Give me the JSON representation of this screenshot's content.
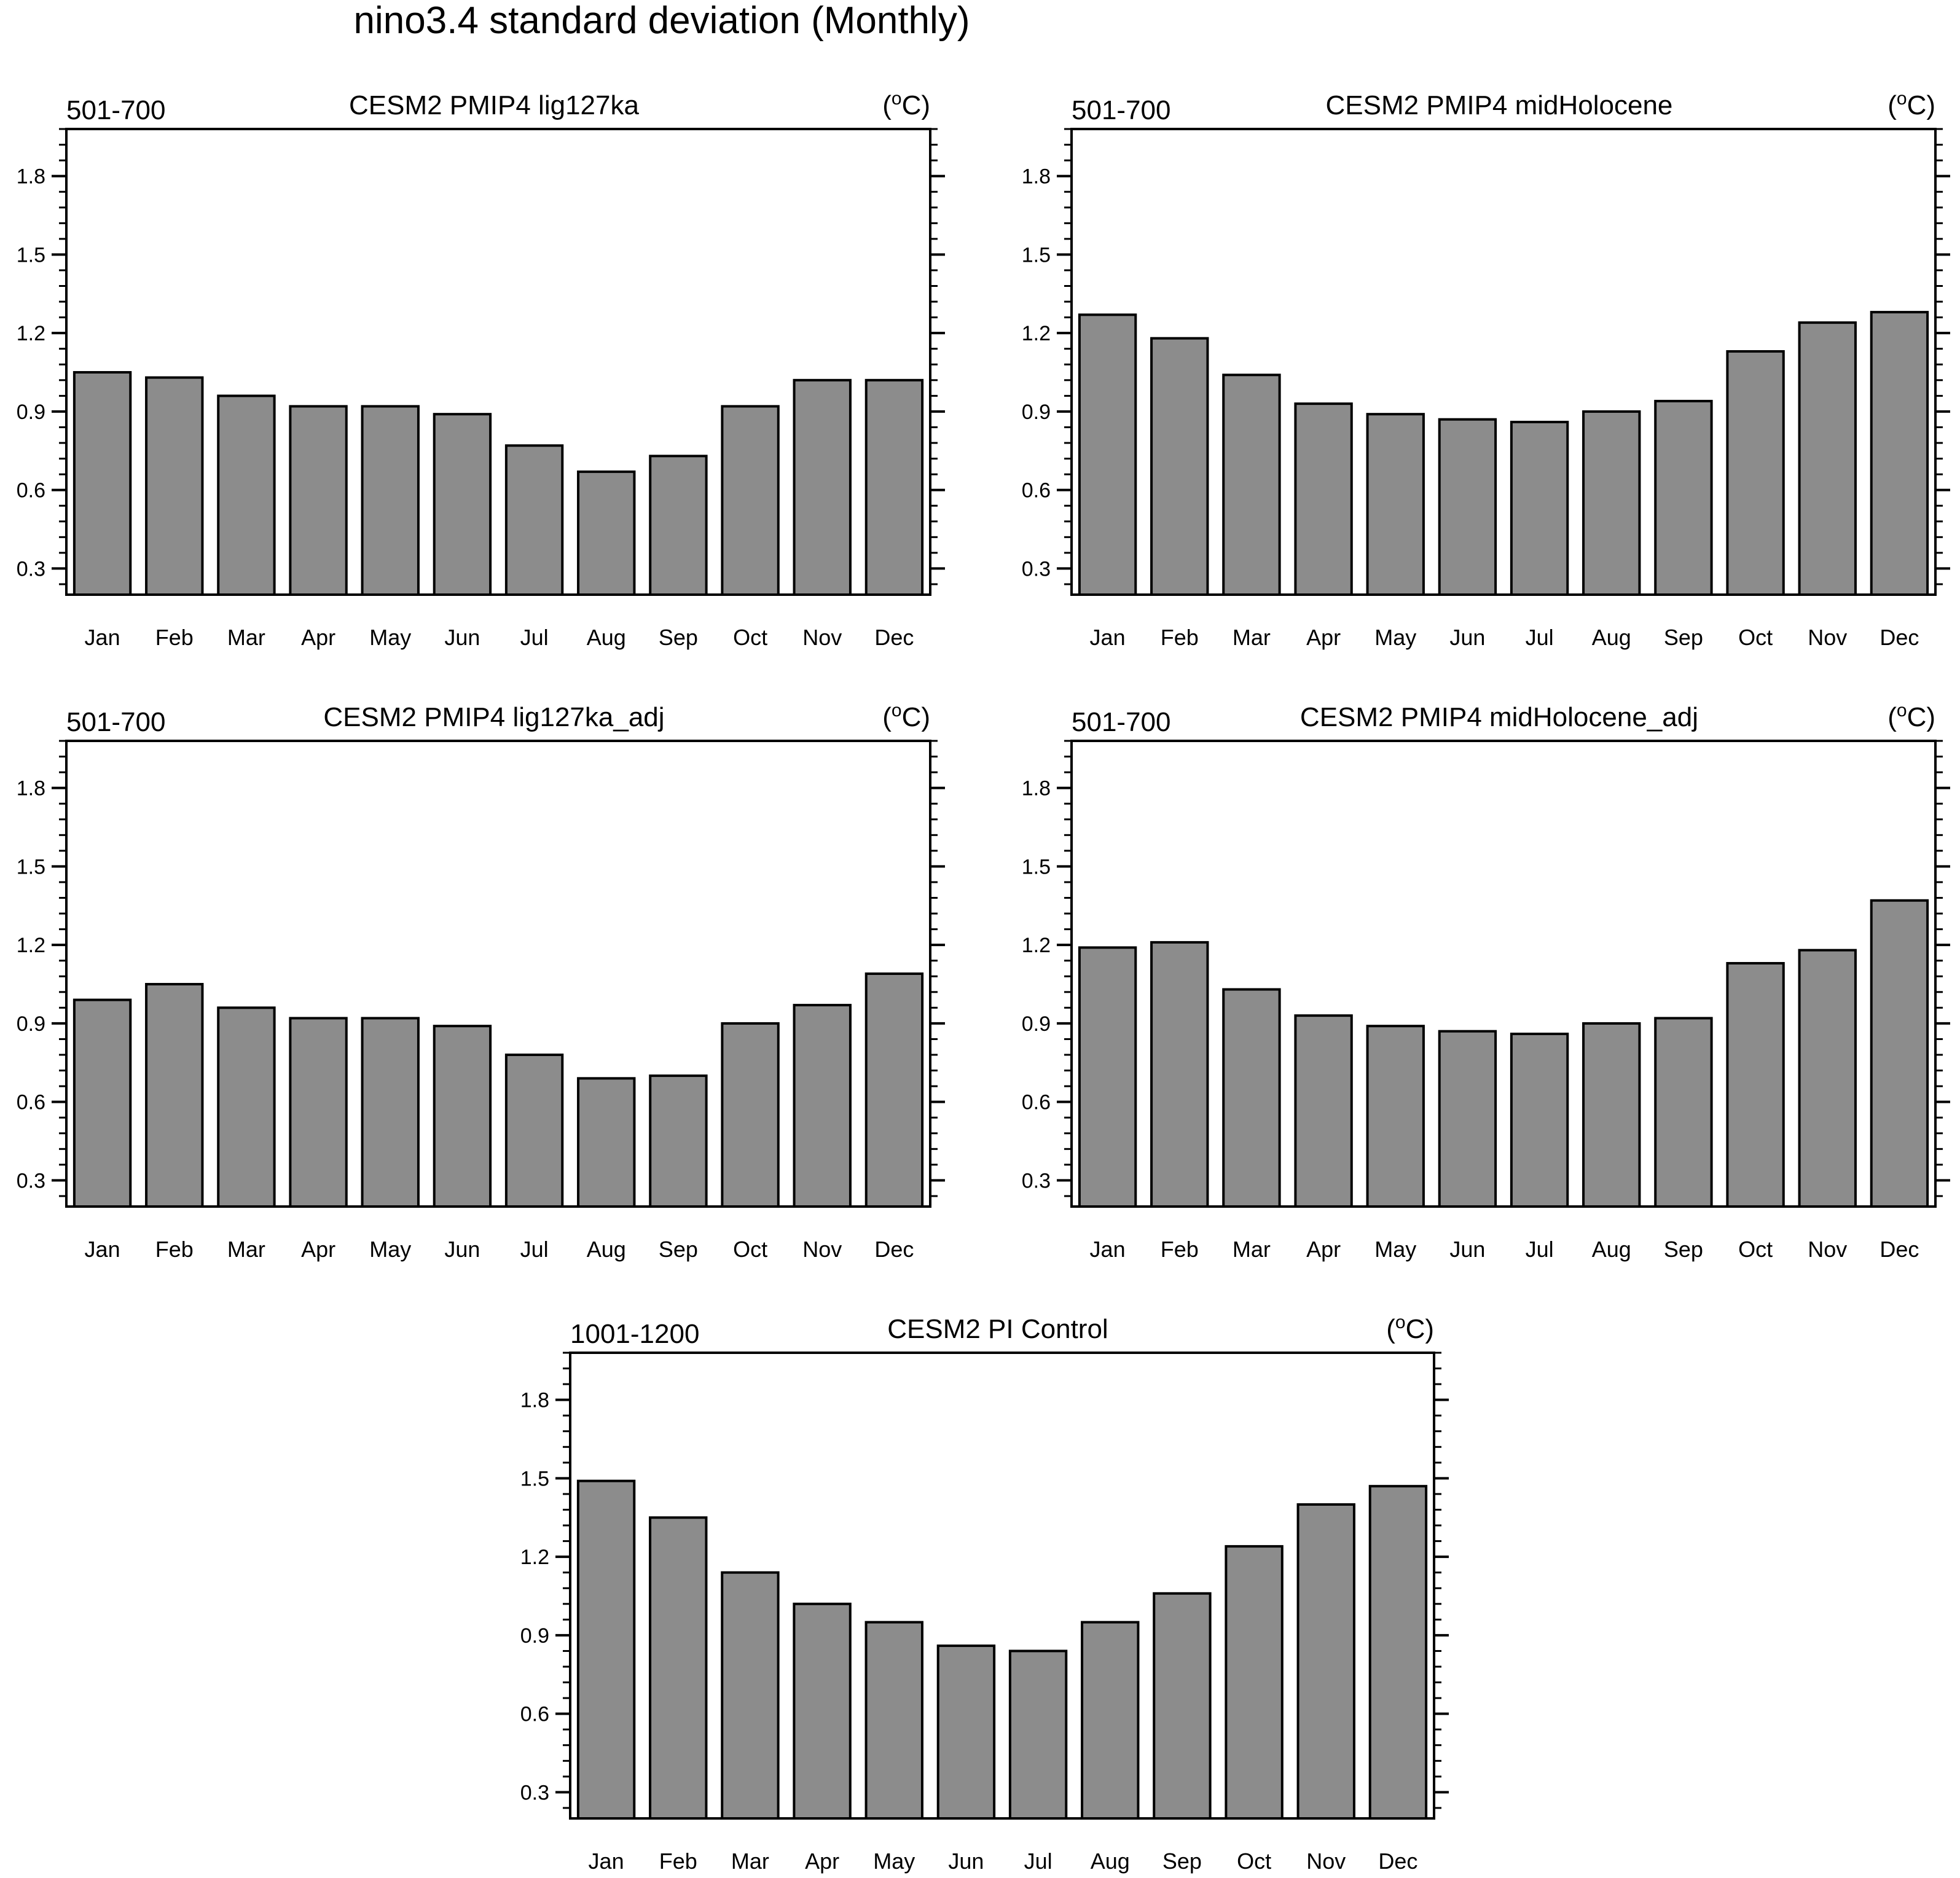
{
  "figure_title": "nino3.4 standard deviation (Monthly)",
  "units_prefix": "(",
  "units_degree": "o",
  "units_suffix": "C)",
  "chart_data": [
    {
      "type": "bar",
      "period": "501-700",
      "title": "CESM2 PMIP4 lig127ka",
      "categories": [
        "Jan",
        "Feb",
        "Mar",
        "Apr",
        "May",
        "Jun",
        "Jul",
        "Aug",
        "Sep",
        "Oct",
        "Nov",
        "Dec"
      ],
      "values": [
        1.05,
        1.03,
        0.96,
        0.92,
        0.92,
        0.89,
        0.77,
        0.67,
        0.73,
        0.92,
        1.02,
        1.02
      ],
      "yticks": [
        "0.3",
        "0.6",
        "0.9",
        "1.2",
        "1.5",
        "1.8"
      ],
      "ylim": [
        0.2,
        1.98
      ]
    },
    {
      "type": "bar",
      "period": "501-700",
      "title": "CESM2 PMIP4 midHolocene",
      "categories": [
        "Jan",
        "Feb",
        "Mar",
        "Apr",
        "May",
        "Jun",
        "Jul",
        "Aug",
        "Sep",
        "Oct",
        "Nov",
        "Dec"
      ],
      "values": [
        1.27,
        1.18,
        1.04,
        0.93,
        0.89,
        0.87,
        0.86,
        0.9,
        0.94,
        1.13,
        1.24,
        1.28
      ],
      "yticks": [
        "0.3",
        "0.6",
        "0.9",
        "1.2",
        "1.5",
        "1.8"
      ],
      "ylim": [
        0.2,
        1.98
      ]
    },
    {
      "type": "bar",
      "period": "501-700",
      "title": "CESM2 PMIP4 lig127ka_adj",
      "categories": [
        "Jan",
        "Feb",
        "Mar",
        "Apr",
        "May",
        "Jun",
        "Jul",
        "Aug",
        "Sep",
        "Oct",
        "Nov",
        "Dec"
      ],
      "values": [
        0.99,
        1.05,
        0.96,
        0.92,
        0.92,
        0.89,
        0.78,
        0.69,
        0.7,
        0.9,
        0.97,
        1.09
      ],
      "yticks": [
        "0.3",
        "0.6",
        "0.9",
        "1.2",
        "1.5",
        "1.8"
      ],
      "ylim": [
        0.2,
        1.98
      ]
    },
    {
      "type": "bar",
      "period": "501-700",
      "title": "CESM2 PMIP4 midHolocene_adj",
      "categories": [
        "Jan",
        "Feb",
        "Mar",
        "Apr",
        "May",
        "Jun",
        "Jul",
        "Aug",
        "Sep",
        "Oct",
        "Nov",
        "Dec"
      ],
      "values": [
        1.19,
        1.21,
        1.03,
        0.93,
        0.89,
        0.87,
        0.86,
        0.9,
        0.92,
        1.13,
        1.18,
        1.37
      ],
      "yticks": [
        "0.3",
        "0.6",
        "0.9",
        "1.2",
        "1.5",
        "1.8"
      ],
      "ylim": [
        0.2,
        1.98
      ]
    },
    {
      "type": "bar",
      "period": "1001-1200",
      "title": "CESM2 PI Control",
      "categories": [
        "Jan",
        "Feb",
        "Mar",
        "Apr",
        "May",
        "Jun",
        "Jul",
        "Aug",
        "Sep",
        "Oct",
        "Nov",
        "Dec"
      ],
      "values": [
        1.49,
        1.35,
        1.14,
        1.02,
        0.95,
        0.86,
        0.84,
        0.95,
        1.06,
        1.24,
        1.4,
        1.47
      ],
      "yticks": [
        "0.3",
        "0.6",
        "0.9",
        "1.2",
        "1.5",
        "1.8"
      ],
      "ylim": [
        0.2,
        1.98
      ]
    }
  ]
}
